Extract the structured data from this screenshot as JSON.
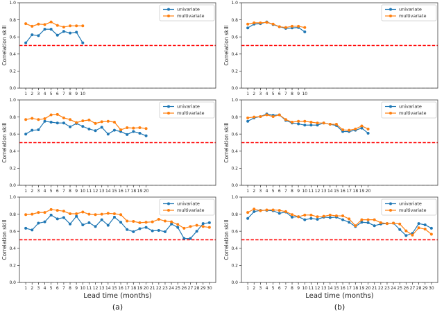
{
  "figure": {
    "ylabel": "Correlation skill",
    "xlabel": "Lead time (months)",
    "captions": [
      "(a)",
      "(b)"
    ],
    "legend": [
      "univariate",
      "multivariate"
    ],
    "colors": {
      "univariate": "#1f77b4",
      "multivariate": "#ff7f0e",
      "threshold_line": "#ff0000",
      "zero_line": "#a0a0a0",
      "spine": "#3c3c3c",
      "tick_text": "#262626"
    },
    "ylim": [
      0.0,
      1.0
    ],
    "yticks": [
      0.0,
      0.2,
      0.4,
      0.6,
      0.8,
      1.0
    ],
    "xlim": [
      0,
      31
    ],
    "threshold_value": 0.5,
    "zero_value": 0.0
  },
  "chart_data": [
    {
      "id": "a1",
      "type": "line",
      "position": "top-left",
      "x_start": 1,
      "series": [
        {
          "name": "univariate",
          "values": [
            0.53,
            0.625,
            0.615,
            0.69,
            0.69,
            0.62,
            0.665,
            0.645,
            0.655,
            0.53
          ]
        },
        {
          "name": "multivariate",
          "values": [
            0.755,
            0.725,
            0.75,
            0.745,
            0.775,
            0.735,
            0.715,
            0.73,
            0.73,
            0.73
          ]
        }
      ]
    },
    {
      "id": "b1",
      "type": "line",
      "position": "top-right",
      "x_start": 1,
      "series": [
        {
          "name": "univariate",
          "values": [
            0.705,
            0.75,
            0.755,
            0.775,
            0.745,
            0.72,
            0.7,
            0.705,
            0.71,
            0.66
          ]
        },
        {
          "name": "multivariate",
          "values": [
            0.75,
            0.765,
            0.765,
            0.77,
            0.75,
            0.72,
            0.71,
            0.725,
            0.725,
            0.71
          ]
        }
      ]
    },
    {
      "id": "a2",
      "type": "line",
      "position": "middle-left",
      "x_start": 1,
      "series": [
        {
          "name": "univariate",
          "values": [
            0.6,
            0.645,
            0.65,
            0.75,
            0.74,
            0.73,
            0.73,
            0.685,
            0.725,
            0.69,
            0.66,
            0.64,
            0.68,
            0.6,
            0.645,
            0.63,
            0.595,
            0.63,
            0.61,
            0.58
          ]
        },
        {
          "name": "multivariate",
          "values": [
            0.77,
            0.785,
            0.77,
            0.78,
            0.825,
            0.83,
            0.79,
            0.77,
            0.735,
            0.755,
            0.765,
            0.725,
            0.745,
            0.75,
            0.74,
            0.65,
            0.675,
            0.67,
            0.675,
            0.665
          ]
        }
      ]
    },
    {
      "id": "b2",
      "type": "line",
      "position": "middle-right",
      "x_start": 1,
      "series": [
        {
          "name": "univariate",
          "values": [
            0.75,
            0.79,
            0.805,
            0.835,
            0.82,
            0.825,
            0.76,
            0.73,
            0.72,
            0.705,
            0.705,
            0.705,
            0.73,
            0.715,
            0.7,
            0.63,
            0.63,
            0.645,
            0.67,
            0.61
          ]
        },
        {
          "name": "multivariate",
          "values": [
            0.79,
            0.8,
            0.805,
            0.825,
            0.805,
            0.825,
            0.77,
            0.74,
            0.75,
            0.75,
            0.74,
            0.73,
            0.73,
            0.715,
            0.715,
            0.65,
            0.645,
            0.66,
            0.695,
            0.66
          ]
        }
      ]
    },
    {
      "id": "a3",
      "type": "line",
      "position": "bottom-left",
      "x_start": 1,
      "series": [
        {
          "name": "univariate",
          "values": [
            0.635,
            0.615,
            0.695,
            0.71,
            0.79,
            0.745,
            0.76,
            0.685,
            0.775,
            0.675,
            0.7,
            0.655,
            0.735,
            0.67,
            0.765,
            0.705,
            0.62,
            0.595,
            0.63,
            0.645,
            0.605,
            0.61,
            0.595,
            0.685,
            0.645,
            0.515,
            0.515,
            0.6,
            0.69,
            0.7
          ]
        },
        {
          "name": "multivariate",
          "values": [
            0.795,
            0.8,
            0.82,
            0.82,
            0.855,
            0.845,
            0.835,
            0.805,
            0.805,
            0.825,
            0.8,
            0.795,
            0.8,
            0.81,
            0.805,
            0.795,
            0.72,
            0.715,
            0.7,
            0.705,
            0.71,
            0.74,
            0.72,
            0.71,
            0.68,
            0.635,
            0.655,
            0.67,
            0.655,
            0.645
          ]
        }
      ]
    },
    {
      "id": "b3",
      "type": "line",
      "position": "bottom-right",
      "x_start": 1,
      "series": [
        {
          "name": "univariate",
          "values": [
            0.75,
            0.83,
            0.845,
            0.845,
            0.84,
            0.81,
            0.825,
            0.765,
            0.77,
            0.735,
            0.75,
            0.74,
            0.765,
            0.76,
            0.765,
            0.735,
            0.705,
            0.655,
            0.705,
            0.7,
            0.665,
            0.685,
            0.69,
            0.695,
            0.62,
            0.55,
            0.575,
            0.69,
            0.675,
            0.635
          ]
        },
        {
          "name": "multivariate",
          "values": [
            0.82,
            0.86,
            0.84,
            0.85,
            0.85,
            0.845,
            0.83,
            0.795,
            0.77,
            0.79,
            0.79,
            0.77,
            0.775,
            0.79,
            0.78,
            0.78,
            0.745,
            0.665,
            0.735,
            0.735,
            0.735,
            0.7,
            0.69,
            0.695,
            0.685,
            0.605,
            0.555,
            0.64,
            0.625,
            0.565
          ]
        }
      ]
    }
  ]
}
